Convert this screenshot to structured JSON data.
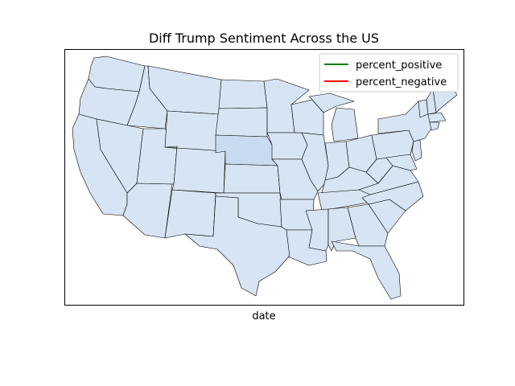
{
  "title": "Diff Trump Sentiment Across the US",
  "xlabel": "date",
  "legend": {
    "placement": "top-right",
    "items": [
      {
        "label": "percent_positive",
        "color": "#008000"
      },
      {
        "label": "percent_negative",
        "color": "#ff0000"
      }
    ]
  },
  "colors": {
    "state_fill": "#d6e4f3",
    "highlight_fill": "#c9dbee",
    "border": "#000000"
  },
  "highlighted_state": "Nebraska"
}
